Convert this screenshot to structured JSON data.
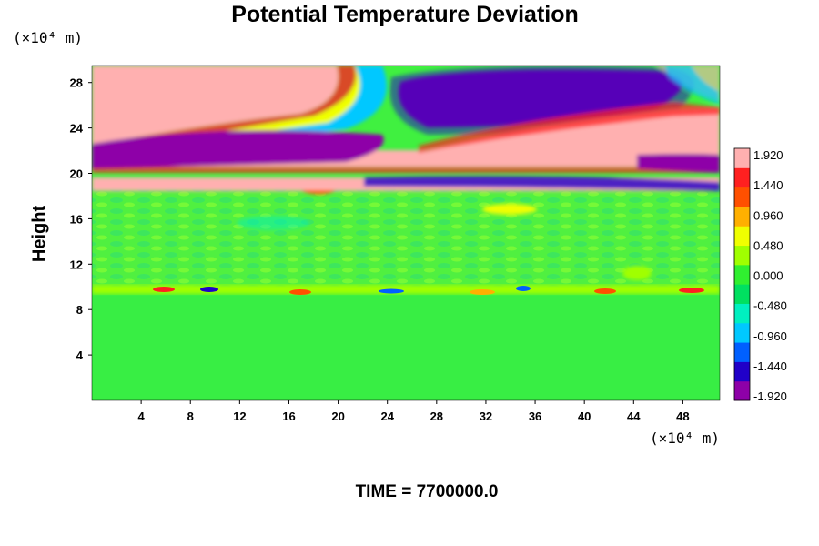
{
  "chart_data": {
    "type": "heatmap",
    "title": "Potential Temperature Deviation",
    "ylabel": "Height",
    "xlabel": "",
    "x_unit": "(×10⁴ m)",
    "y_unit": "(×10⁴ m)",
    "x_range": [
      0,
      51
    ],
    "y_range": [
      0,
      29.5
    ],
    "x_ticks": [
      4,
      8,
      12,
      16,
      20,
      24,
      28,
      32,
      36,
      40,
      44,
      48
    ],
    "y_ticks": [
      4,
      8,
      12,
      16,
      20,
      24,
      28
    ],
    "colorbar": {
      "min": -1.92,
      "max": 1.92,
      "tick_labels": [
        "1.920",
        "1.440",
        "0.960",
        "0.480",
        "0.000",
        "-0.480",
        "-0.960",
        "-1.440",
        "-1.920"
      ],
      "colors": [
        "#8e00a8",
        "#2000c8",
        "#0060ff",
        "#00c8ff",
        "#00f0c0",
        "#00e060",
        "#30f030",
        "#a0ff00",
        "#f0ff00",
        "#ffb000",
        "#ff5000",
        "#ff2020",
        "#ffb0b0"
      ]
    },
    "grid": false,
    "legend": "right"
  },
  "footer": {
    "time_label": "TIME = 7700000.0"
  }
}
